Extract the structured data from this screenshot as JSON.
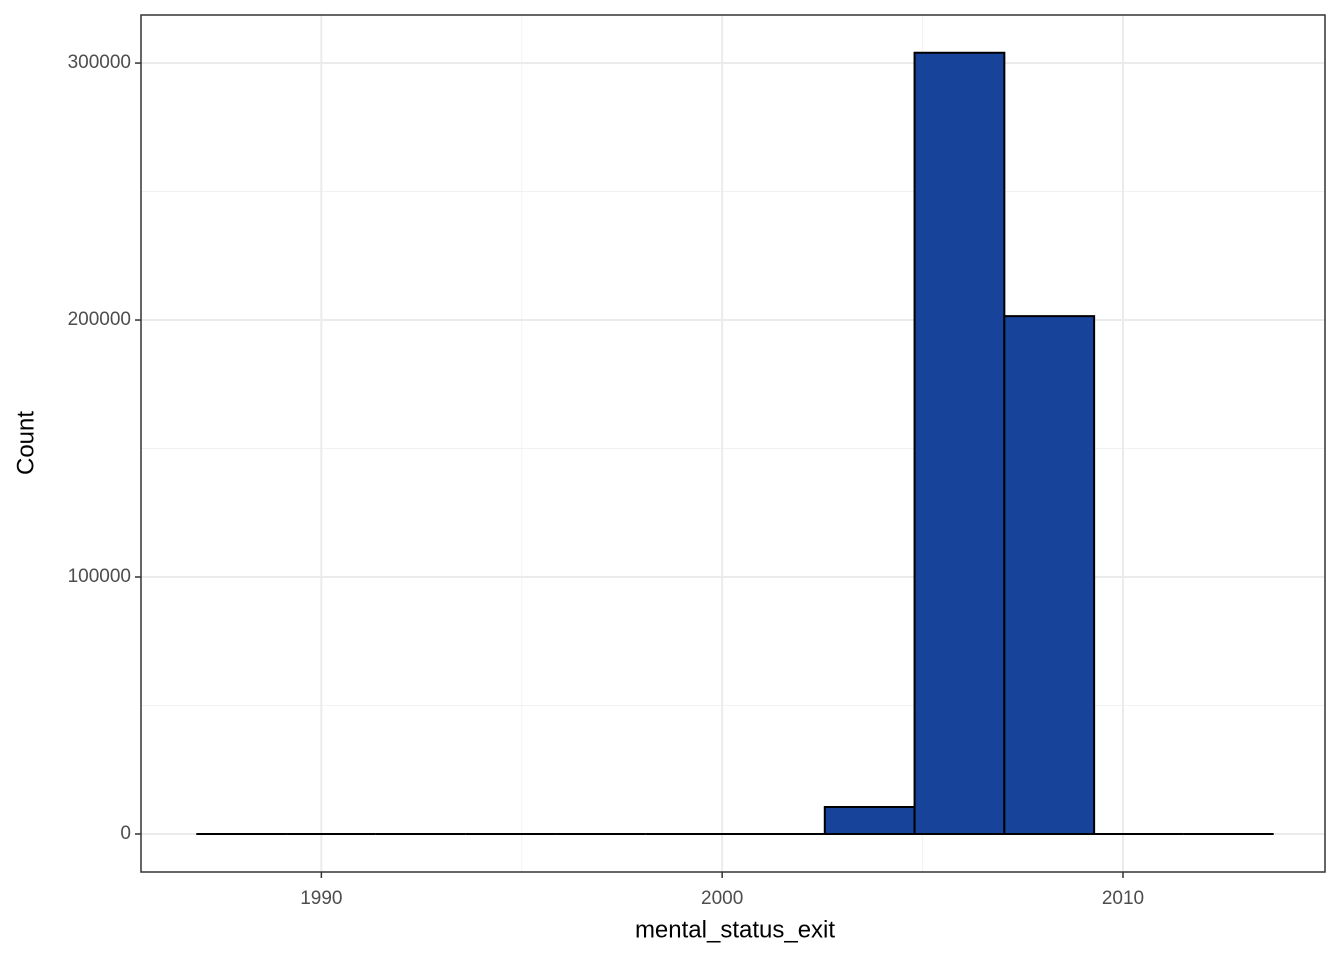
{
  "chart_data": {
    "type": "histogram",
    "x_label": "mental_status_exit",
    "y_label": "Count",
    "bins": [
      1986.88,
      1989.12,
      1991.36,
      1993.6,
      1995.84,
      1998.08,
      2000.32,
      2002.56,
      2004.8,
      2007.04,
      2009.28,
      2011.52,
      2013.76
    ],
    "values": [
      0,
      0,
      0,
      0,
      0,
      0,
      0,
      10500,
      304000,
      201500,
      0,
      0,
      0
    ],
    "color": "#18439a",
    "edge_color": "#000000",
    "xlim": [
      1985.5,
      2015.04
    ],
    "ylim": [
      -14800,
      318700
    ],
    "xticks": [
      1990,
      2000,
      2010
    ],
    "yticks": [
      0,
      100000,
      200000,
      300000
    ],
    "x_minor_ticks": [
      1995,
      2005
    ],
    "y_minor_ticks": [
      50000,
      150000,
      250000
    ],
    "grid": true
  }
}
